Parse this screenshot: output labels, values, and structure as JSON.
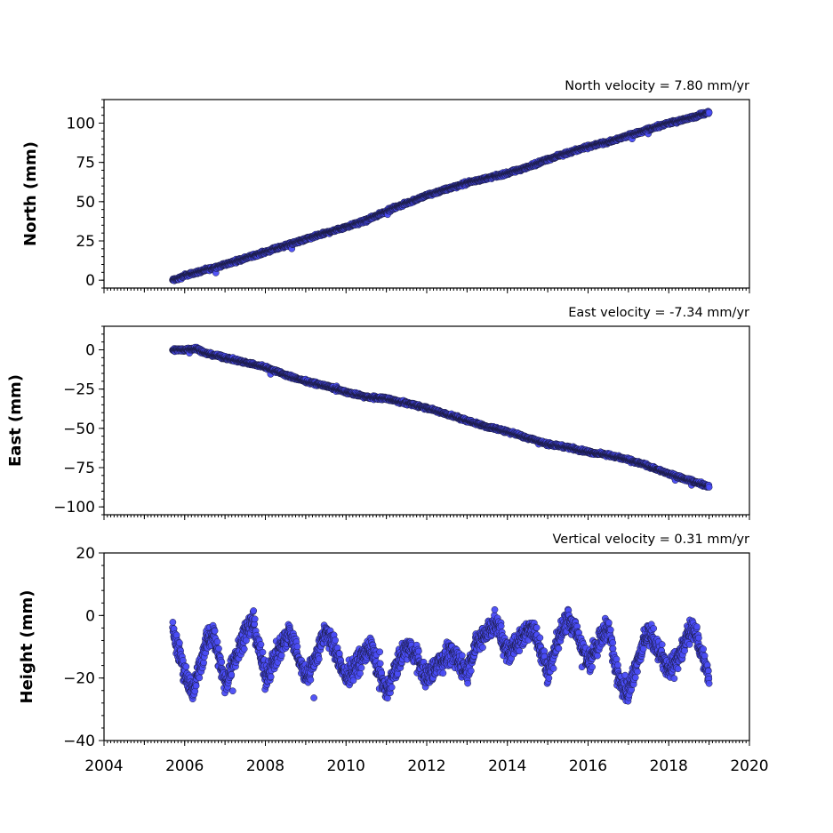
{
  "chart_data": [
    {
      "type": "scatter",
      "title": "North velocity = 7.80 mm/yr",
      "ylabel": "North (mm)",
      "xlim": [
        2004,
        2020
      ],
      "ylim": [
        -5,
        115
      ],
      "yticks": [
        0,
        25,
        50,
        75,
        100
      ],
      "ytick_labels": [
        "0",
        "25",
        "50",
        "75",
        "100"
      ],
      "show_x_tick_labels": false,
      "series": [
        {
          "x": [
            2005.7,
            2005.85,
            2006.0,
            2006.3,
            2006.6,
            2007.0,
            2007.5,
            2008.0,
            2008.5,
            2009.0,
            2009.5,
            2010.0,
            2010.5,
            2011.0,
            2011.5,
            2012.0,
            2012.5,
            2013.0,
            2013.5,
            2014.0,
            2014.5,
            2015.0,
            2015.5,
            2016.0,
            2016.5,
            2017.0,
            2017.5,
            2018.0,
            2018.5,
            2019.0
          ],
          "y": [
            0,
            1,
            3,
            5,
            7,
            10,
            14,
            18,
            22,
            26,
            30,
            34,
            38,
            44,
            49,
            54,
            58,
            62,
            65,
            68,
            72,
            77,
            81,
            85,
            88,
            92,
            96,
            100,
            103,
            107
          ]
        }
      ]
    },
    {
      "type": "scatter",
      "title": "East velocity = -7.34 mm/yr",
      "ylabel": "East (mm)",
      "xlim": [
        2004,
        2020
      ],
      "ylim": [
        -105,
        15
      ],
      "yticks": [
        0,
        -25,
        -50,
        -75,
        -100
      ],
      "ytick_labels": [
        "0",
        "−25",
        "−50",
        "−75",
        "−100"
      ],
      "show_x_tick_labels": false,
      "series": [
        {
          "x": [
            2005.7,
            2006.0,
            2006.3,
            2006.5,
            2007.0,
            2007.5,
            2008.0,
            2008.5,
            2009.0,
            2009.5,
            2010.0,
            2010.5,
            2011.0,
            2011.5,
            2012.0,
            2012.5,
            2013.0,
            2013.5,
            2014.0,
            2014.5,
            2015.0,
            2015.5,
            2016.0,
            2016.5,
            2017.0,
            2017.5,
            2018.0,
            2018.5,
            2019.0
          ],
          "y": [
            0,
            0,
            1,
            -2,
            -5,
            -8,
            -11,
            -16,
            -20,
            -23,
            -27,
            -30,
            -31,
            -34,
            -37,
            -41,
            -45,
            -49,
            -52,
            -56,
            -60,
            -62,
            -65,
            -67,
            -70,
            -74,
            -79,
            -83,
            -87
          ]
        }
      ]
    },
    {
      "type": "scatter",
      "title": "Vertical velocity = 0.31 mm/yr",
      "ylabel": "Height (mm)",
      "xlim": [
        2004,
        2020
      ],
      "ylim": [
        -40,
        20
      ],
      "yticks": [
        20,
        0,
        -20,
        -40
      ],
      "ytick_labels": [
        "20",
        "0",
        "−20",
        "−40"
      ],
      "xticks": [
        2004,
        2006,
        2008,
        2010,
        2012,
        2014,
        2016,
        2018,
        2020
      ],
      "xtick_labels": [
        "2004",
        "2006",
        "2008",
        "2010",
        "2012",
        "2014",
        "2016",
        "2018",
        "2020"
      ],
      "show_x_tick_labels": true,
      "series": [
        {
          "x": [
            2005.7,
            2006.0,
            2006.2,
            2006.5,
            2006.7,
            2007.0,
            2007.2,
            2007.5,
            2007.7,
            2008.0,
            2008.3,
            2008.6,
            2009.0,
            2009.2,
            2009.5,
            2009.7,
            2010.0,
            2010.3,
            2010.6,
            2011.0,
            2011.2,
            2011.5,
            2011.7,
            2012.0,
            2012.3,
            2012.6,
            2013.0,
            2013.2,
            2013.5,
            2013.7,
            2014.0,
            2014.3,
            2014.6,
            2015.0,
            2015.2,
            2015.5,
            2015.7,
            2016.0,
            2016.2,
            2016.5,
            2016.7,
            2017.0,
            2017.2,
            2017.5,
            2017.7,
            2018.0,
            2018.3,
            2018.6,
            2019.0
          ],
          "y": [
            -5,
            -18,
            -25,
            -10,
            -5,
            -22,
            -15,
            -5,
            -2,
            -20,
            -12,
            -5,
            -20,
            -15,
            -5,
            -10,
            -20,
            -15,
            -10,
            -25,
            -18,
            -10,
            -12,
            -20,
            -15,
            -12,
            -18,
            -10,
            -5,
            -2,
            -12,
            -8,
            -3,
            -18,
            -10,
            0,
            -5,
            -15,
            -10,
            -3,
            -18,
            -25,
            -15,
            -5,
            -10,
            -18,
            -12,
            -3,
            -20
          ]
        }
      ]
    }
  ]
}
